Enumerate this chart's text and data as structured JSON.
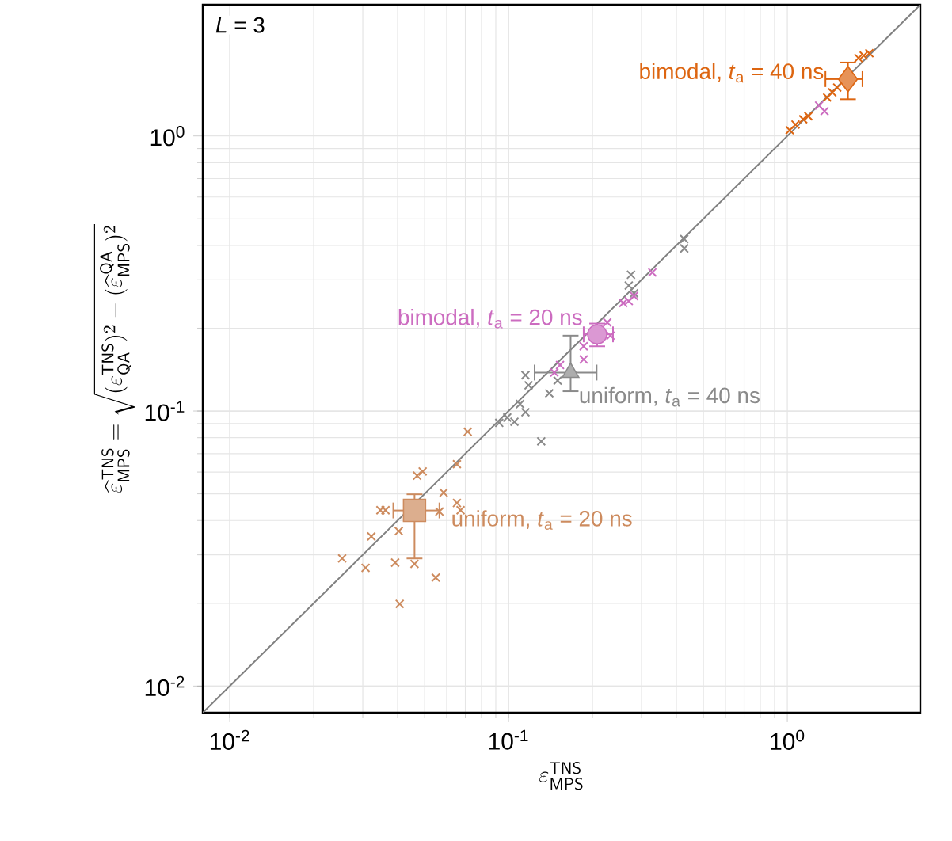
{
  "chart_data": {
    "type": "scatter",
    "xlabel": "\\varepsilon^{\\mathsf{TNS}}_{\\mathsf{MPS}}",
    "ylabel": "\\widehat{\\varepsilon}^{\\,\\mathsf{TNS}}_{\\mathsf{MPS}} = \\sqrt{(\\varepsilon^{\\mathsf{TNS}}_{\\mathsf{QA}})^2 - (\\widehat{\\varepsilon}^{\\,\\mathsf{QA}}_{\\mathsf{MPS}})^2}",
    "annotations": [
      "*L* = 3"
    ],
    "log": "xy",
    "grid": true,
    "xlim": [
      0.008,
      3
    ],
    "ylim": [
      0.008,
      3
    ],
    "xticks": [
      {
        "value": 0.01,
        "label": "10$^{-2}$"
      },
      {
        "value": 0.1,
        "label": "10$^{-1}$"
      },
      {
        "value": 1,
        "label": "10$^{0}$"
      }
    ],
    "yticks": [
      {
        "value": 0.01,
        "label": "10$^{-2}$"
      },
      {
        "value": 0.1,
        "label": "10$^{-1}$"
      },
      {
        "value": 1,
        "label": "10$^{0}$"
      }
    ],
    "series": [
      {
        "type": "line",
        "color": "#808080",
        "marker": "none",
        "x": [
          0.008,
          3
        ],
        "values": [
          0.008,
          3
        ]
      },
      {
        "color": "#cd8b5e",
        "marker": "cross",
        "x": [
          0.0714,
          0.0653,
          0.047,
          0.0492,
          0.0585,
          0.0653,
          0.0673,
          0.0347,
          0.0362,
          0.0565,
          0.0404,
          0.0322,
          0.0253,
          0.0307,
          0.0392,
          0.046,
          0.0548,
          0.0407
        ],
        "values": [
          0.0841,
          0.0641,
          0.0582,
          0.0603,
          0.0505,
          0.0463,
          0.0436,
          0.0436,
          0.0436,
          0.0431,
          0.0366,
          0.035,
          0.0291,
          0.0269,
          0.0281,
          0.0278,
          0.0248,
          0.0199
        ]
      },
      {
        "color": "#8a8a8a",
        "marker": "cross",
        "x": [
          0.427,
          0.427,
          0.275,
          0.282,
          0.27,
          0.118,
          0.115,
          0.15,
          0.14,
          0.11,
          0.115,
          0.0989,
          0.0926,
          0.105,
          0.131
        ],
        "values": [
          0.422,
          0.39,
          0.313,
          0.268,
          0.286,
          0.124,
          0.135,
          0.129,
          0.116,
          0.106,
          0.099,
          0.0947,
          0.0906,
          0.0914,
          0.0776
        ]
      },
      {
        "color": "#cc6cc0",
        "marker": "cross",
        "x": [
          0.328,
          0.282,
          0.27,
          0.258,
          0.226,
          0.232,
          0.186,
          0.153,
          0.146,
          0.186,
          1.3,
          1.36
        ],
        "values": [
          0.319,
          0.262,
          0.251,
          0.247,
          0.21,
          0.188,
          0.172,
          0.147,
          0.138,
          0.154,
          1.29,
          1.23
        ]
      },
      {
        "color": "#dd6510",
        "marker": "cross",
        "x": [
          1.02,
          1.07,
          1.14,
          1.19,
          1.39,
          1.45,
          1.8,
          1.88,
          1.97,
          1.51
        ],
        "values": [
          1.05,
          1.1,
          1.15,
          1.18,
          1.38,
          1.44,
          1.92,
          1.96,
          2.0,
          1.5
        ]
      },
      {
        "name": "uniform, *t*$_{a}$ = 20 ns",
        "color": "#cd8b5e",
        "marker": "square",
        "x": [
          0.046
        ],
        "values": [
          0.0435
        ],
        "errors": [
          [
            0.0291,
            0.0498
          ]
        ],
        "xerrors": [
          [
            0.0386,
            0.0565
          ]
        ]
      },
      {
        "name": "uniform, *t*$_{a}$ = 40 ns",
        "color": "#8a8a8a",
        "marker": "triangle",
        "x": [
          0.167
        ],
        "values": [
          0.138
        ],
        "errors": [
          [
            0.118,
            0.188
          ]
        ],
        "xerrors": [
          [
            0.124,
            0.207
          ]
        ]
      },
      {
        "name": "bimodal, *t*$_{a}$ = 20 ns",
        "color": "#cc6cc0",
        "marker": "circle",
        "x": [
          0.208
        ],
        "values": [
          0.19
        ],
        "errors": [
          [
            0.172,
            0.208
          ]
        ],
        "xerrors": [
          [
            0.186,
            0.237
          ]
        ]
      },
      {
        "name": "bimodal, *t*$_{a}$ = 40 ns",
        "color": "#dd6510",
        "marker": "diamond",
        "x": [
          1.65
        ],
        "values": [
          1.61
        ],
        "errors": [
          [
            1.36,
            1.85
          ]
        ],
        "xerrors": [
          [
            1.37,
            1.86
          ]
        ]
      }
    ]
  }
}
